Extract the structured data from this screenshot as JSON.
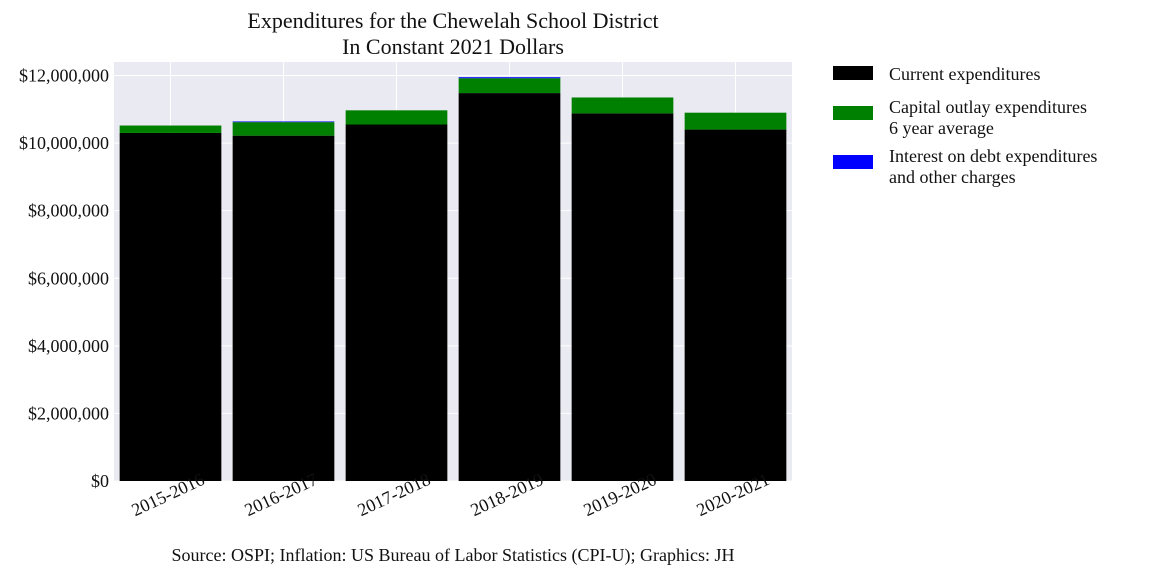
{
  "chart_data": {
    "type": "bar",
    "stacked": true,
    "title": "Expenditures for the Chewelah School District",
    "subtitle": "In Constant 2021 Dollars",
    "xlabel": "",
    "ylabel": "",
    "categories": [
      "2015-2016",
      "2016-2017",
      "2017-2018",
      "2018-2019",
      "2019-2020",
      "2020-2021"
    ],
    "series": [
      {
        "name": "Current expenditures",
        "color": "#000000",
        "values": [
          10300000,
          10220000,
          10550000,
          11480000,
          10880000,
          10400000
        ]
      },
      {
        "name_lines": [
          "Capital outlay expenditures",
          "6 year average"
        ],
        "color": "#008000",
        "values": [
          220000,
          400000,
          420000,
          440000,
          470000,
          500000
        ]
      },
      {
        "name_lines": [
          "Interest on debt expenditures",
          "and other charges"
        ],
        "color": "#0000ff",
        "values": [
          0,
          20000,
          0,
          30000,
          0,
          0
        ]
      }
    ],
    "yticks": [
      "$0",
      "$2,000,000",
      "$4,000,000",
      "$6,000,000",
      "$8,000,000",
      "$10,000,000",
      "$12,000,000"
    ],
    "ytick_values": [
      0,
      2000000,
      4000000,
      6000000,
      8000000,
      10000000,
      12000000
    ],
    "ylim": [
      0,
      12400000
    ],
    "grid": true,
    "legend_position": "outside-right",
    "source": "Source: OSPI; Inflation: US Bureau of Labor Statistics (CPI-U); Graphics: JH",
    "colors": {
      "plot_background": "#eaeaf2",
      "grid": "#ffffff"
    }
  }
}
